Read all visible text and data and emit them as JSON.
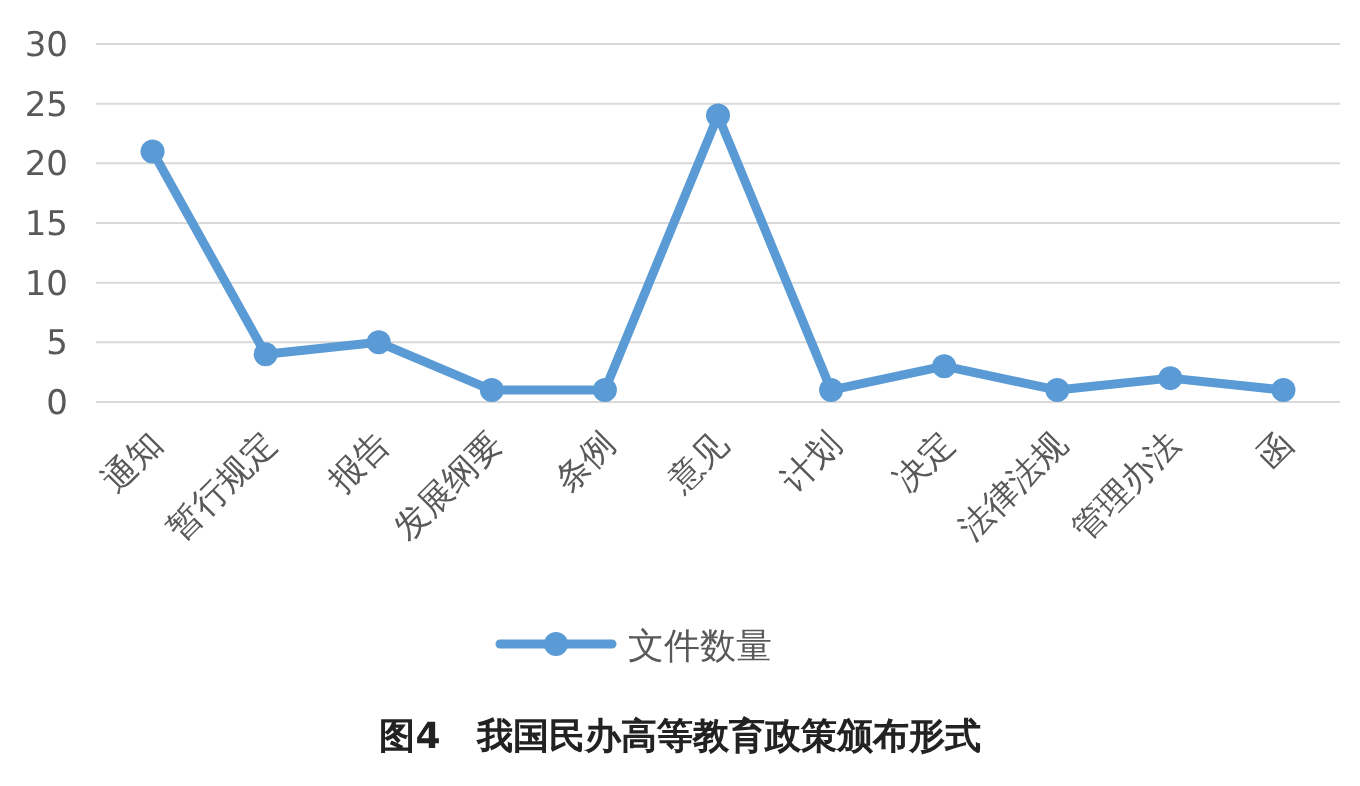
{
  "chart_data": {
    "type": "line",
    "title": "图4　我国民办高等教育政策颁布形式",
    "categories": [
      "通知",
      "暂行规定",
      "报告",
      "发展纲要",
      "条例",
      "意见",
      "计划",
      "决定",
      "法律法规",
      "管理办法",
      "函"
    ],
    "series": [
      {
        "name": "文件数量",
        "color": "#5b9bd5",
        "values": [
          21,
          4,
          5,
          1,
          1,
          24,
          1,
          3,
          1,
          2,
          1
        ]
      }
    ],
    "ylim": [
      0,
      30
    ],
    "yticks": [
      0,
      5,
      10,
      15,
      20,
      25,
      30
    ],
    "grid": "y",
    "legend": "bottom",
    "marker": "circle",
    "line_style": "solid"
  }
}
